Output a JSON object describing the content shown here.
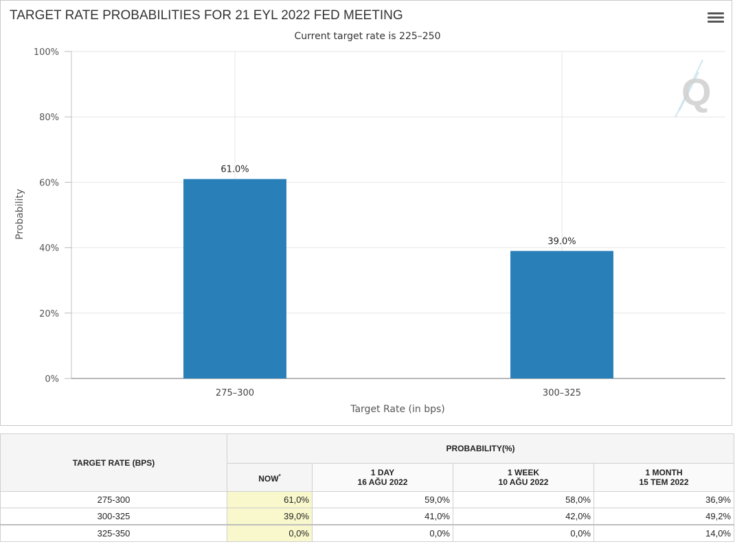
{
  "chart_data": {
    "type": "bar",
    "title": "TARGET RATE PROBABILITIES FOR 21 EYL 2022 FED MEETING",
    "subtitle": "Current target rate is 225–250",
    "xlabel": "Target Rate (in bps)",
    "ylabel": "Probability",
    "categories": [
      "275–300",
      "300–325"
    ],
    "values": [
      61.0,
      39.0
    ],
    "data_labels": [
      "61.0%",
      "39.0%"
    ],
    "ylim": [
      0,
      100
    ],
    "yticks": [
      "0%",
      "20%",
      "40%",
      "60%",
      "80%",
      "100%"
    ],
    "grid": true,
    "bar_color": "#2980b9"
  },
  "table": {
    "rate_header": "TARGET RATE (BPS)",
    "group_header": "PROBABILITY(%)",
    "columns": [
      {
        "line1": "NOW",
        "line2": "",
        "marker": "*"
      },
      {
        "line1": "1 DAY",
        "line2": "16 AĞU 2022",
        "marker": ""
      },
      {
        "line1": "1 WEEK",
        "line2": "10 AĞU 2022",
        "marker": ""
      },
      {
        "line1": "1 MONTH",
        "line2": "15 TEM 2022",
        "marker": ""
      }
    ],
    "rows": [
      {
        "rate": "275-300",
        "values": [
          "61,0%",
          "59,0%",
          "58,0%",
          "36,9%"
        ]
      },
      {
        "rate": "300-325",
        "values": [
          "39,0%",
          "41,0%",
          "42,0%",
          "49,2%"
        ]
      },
      {
        "rate": "325-350",
        "values": [
          "0,0%",
          "0,0%",
          "0,0%",
          "14,0%"
        ]
      }
    ]
  },
  "icons": {
    "menu": "hamburger-menu-icon",
    "watermark": "q-logo-watermark"
  }
}
